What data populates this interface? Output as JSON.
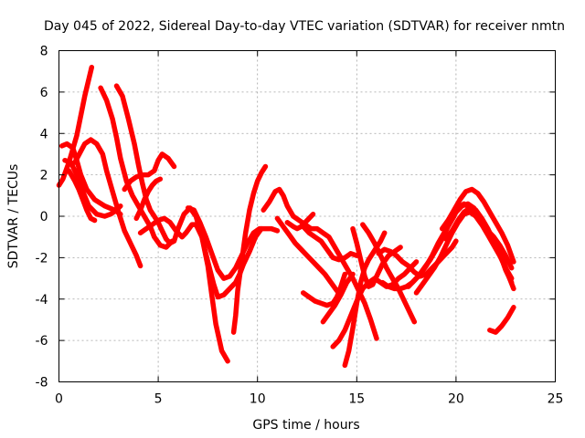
{
  "chart_data": {
    "type": "line",
    "title": "Day 045 of 2022, Sidereal Day-to-day VTEC variation (SDTVAR) for receiver nmtn",
    "xlabel": "GPS time / hours",
    "ylabel": "SDTVAR / TECUs",
    "xlim": [
      0,
      25
    ],
    "ylim": [
      -8,
      8
    ],
    "xticks": [
      0,
      5,
      10,
      15,
      20,
      25
    ],
    "yticks": [
      -8,
      -6,
      -4,
      -2,
      0,
      2,
      4,
      6,
      8
    ],
    "xtick_labels": [
      "0",
      "5",
      "10",
      "15",
      "20",
      "25"
    ],
    "ytick_labels": [
      "-8",
      "-6",
      "-4",
      "-2",
      "0",
      "2",
      "4",
      "6",
      "8"
    ],
    "grid": true,
    "marker": "plus",
    "color": "#ff0000",
    "series": [
      {
        "name": "s1",
        "x": [
          0.0,
          0.2,
          0.5,
          0.9,
          1.3,
          1.65
        ],
        "y": [
          1.5,
          1.8,
          2.6,
          3.9,
          5.8,
          7.2
        ]
      },
      {
        "name": "s2",
        "x": [
          0.15,
          0.4,
          0.7,
          0.9,
          1.1,
          1.4,
          1.8,
          2.3,
          2.8,
          3.1
        ],
        "y": [
          3.4,
          3.5,
          3.3,
          2.7,
          2.0,
          1.3,
          0.8,
          0.5,
          0.3,
          0.1
        ]
      },
      {
        "name": "s3",
        "x": [
          0.3,
          0.6,
          0.9,
          1.2,
          1.5,
          1.9,
          2.3,
          2.6,
          2.9,
          3.1
        ],
        "y": [
          2.7,
          2.6,
          2.0,
          1.2,
          0.5,
          0.1,
          0.0,
          0.1,
          0.3,
          0.5
        ]
      },
      {
        "name": "s4",
        "x": [
          0.5,
          0.8,
          1.0,
          1.2,
          1.4,
          1.6,
          1.8
        ],
        "y": [
          2.2,
          1.7,
          1.3,
          0.8,
          0.3,
          -0.1,
          -0.2
        ]
      },
      {
        "name": "s5",
        "x": [
          0.8,
          1.3,
          1.6,
          1.9,
          2.2,
          2.4,
          2.7,
          3.0,
          3.3,
          3.6,
          3.9,
          4.1
        ],
        "y": [
          2.6,
          3.5,
          3.7,
          3.5,
          3.0,
          2.2,
          1.2,
          0.2,
          -0.7,
          -1.3,
          -1.9,
          -2.4
        ]
      },
      {
        "name": "s6",
        "x": [
          2.1,
          2.4,
          2.7,
          2.9,
          3.1,
          3.4,
          3.7,
          4.0,
          4.3,
          4.6,
          4.8,
          5.1,
          5.4,
          5.7
        ],
        "y": [
          6.2,
          5.6,
          4.7,
          3.8,
          2.8,
          1.7,
          1.0,
          0.5,
          0.0,
          -0.5,
          -1.0,
          -1.4,
          -1.5,
          -1.2
        ]
      },
      {
        "name": "s7",
        "x": [
          2.9,
          3.2,
          3.5,
          3.8,
          4.0,
          4.2,
          4.4,
          4.6,
          4.8,
          5.0,
          5.2,
          5.4,
          5.6,
          5.8,
          6.0,
          6.3,
          6.6,
          6.9,
          7.2,
          7.5,
          7.7,
          7.9,
          8.2,
          8.5
        ],
        "y": [
          6.3,
          5.8,
          4.7,
          3.5,
          2.5,
          1.6,
          0.8,
          0.3,
          0.0,
          -0.3,
          -0.7,
          -1.1,
          -1.3,
          -1.2,
          -0.6,
          0.1,
          0.4,
          0.0,
          -1.0,
          -2.4,
          -3.8,
          -5.2,
          -6.5,
          -7.0
        ]
      },
      {
        "name": "s8",
        "x": [
          3.3,
          3.6,
          3.9,
          4.2,
          4.5,
          4.8,
          5.0,
          5.2,
          5.5,
          5.8
        ],
        "y": [
          1.3,
          1.7,
          1.9,
          2.0,
          2.0,
          2.2,
          2.7,
          3.0,
          2.8,
          2.4
        ]
      },
      {
        "name": "s9",
        "x": [
          3.9,
          4.1,
          4.3,
          4.5,
          4.7,
          4.9,
          5.1
        ],
        "y": [
          -0.1,
          0.3,
          0.8,
          1.2,
          1.5,
          1.7,
          1.8
        ]
      },
      {
        "name": "s10",
        "x": [
          4.1,
          4.4,
          4.7,
          5.0,
          5.3,
          5.6,
          5.9,
          6.2,
          6.4,
          6.7,
          6.9,
          7.2,
          7.5,
          7.8,
          8.0,
          8.3,
          8.6,
          8.9,
          9.1,
          9.3,
          9.6,
          9.9,
          10.2
        ],
        "y": [
          -0.8,
          -0.6,
          -0.4,
          -0.2,
          -0.1,
          -0.3,
          -0.7,
          -1.0,
          -0.8,
          -0.4,
          -0.4,
          -1.0,
          -2.2,
          -3.3,
          -3.9,
          -3.8,
          -3.5,
          -3.2,
          -2.8,
          -2.3,
          -1.7,
          -1.0,
          -0.6
        ]
      },
      {
        "name": "s11",
        "x": [
          6.5,
          6.8,
          7.1,
          7.4,
          7.7,
          8.0,
          8.3,
          8.6,
          8.9,
          9.2,
          9.5,
          9.8,
          10.1,
          10.4,
          10.7,
          11.0
        ],
        "y": [
          0.4,
          0.3,
          -0.3,
          -1.0,
          -1.8,
          -2.6,
          -3.0,
          -2.9,
          -2.5,
          -1.9,
          -1.3,
          -0.8,
          -0.6,
          -0.6,
          -0.6,
          -0.7
        ]
      },
      {
        "name": "s12",
        "x": [
          8.8,
          8.9,
          9.0,
          9.2,
          9.4,
          9.6,
          9.8,
          10.0,
          10.2,
          10.4
        ],
        "y": [
          -5.6,
          -4.8,
          -3.6,
          -2.2,
          -0.8,
          0.3,
          1.1,
          1.7,
          2.1,
          2.4
        ]
      },
      {
        "name": "s13",
        "x": [
          10.3,
          10.6,
          10.9,
          11.1,
          11.3,
          11.5,
          11.8,
          12.1,
          12.4,
          12.7,
          13.0,
          13.3,
          13.6,
          13.9,
          14.2,
          14.5,
          14.8,
          15.1,
          15.4,
          15.7,
          16.0
        ],
        "y": [
          0.3,
          0.7,
          1.2,
          1.3,
          1.0,
          0.5,
          0.0,
          -0.2,
          -0.4,
          -0.6,
          -0.6,
          -0.8,
          -1.0,
          -1.5,
          -2.0,
          -2.5,
          -3.0,
          -3.6,
          -4.2,
          -5.0,
          -5.9
        ]
      },
      {
        "name": "s14",
        "x": [
          11.0,
          11.3,
          11.6,
          11.9,
          12.2,
          12.5,
          12.8,
          13.1,
          13.4,
          13.7,
          14.0
        ],
        "y": [
          -0.1,
          -0.5,
          -0.9,
          -1.3,
          -1.6,
          -1.9,
          -2.2,
          -2.5,
          -2.8,
          -3.2,
          -3.6
        ]
      },
      {
        "name": "s15",
        "x": [
          11.5,
          11.8,
          12.0,
          12.2,
          12.4,
          12.6,
          12.8
        ],
        "y": [
          -0.3,
          -0.5,
          -0.6,
          -0.5,
          -0.3,
          -0.1,
          0.1
        ]
      },
      {
        "name": "s16",
        "x": [
          12.3,
          12.6,
          12.9,
          13.2,
          13.5,
          13.8,
          14.1,
          14.4,
          14.7,
          15.0
        ],
        "y": [
          -0.5,
          -0.8,
          -1.0,
          -1.2,
          -1.6,
          -2.0,
          -2.1,
          -2.0,
          -1.8,
          -1.9
        ]
      },
      {
        "name": "s17",
        "x": [
          12.3,
          12.6,
          12.9,
          13.2,
          13.5,
          13.8,
          14.0,
          14.2,
          14.4
        ],
        "y": [
          -3.7,
          -3.9,
          -4.1,
          -4.2,
          -4.3,
          -4.2,
          -3.9,
          -3.4,
          -2.8
        ]
      },
      {
        "name": "s18",
        "x": [
          13.3,
          13.6,
          13.9,
          14.2,
          14.5,
          14.8
        ],
        "y": [
          -5.1,
          -4.7,
          -4.3,
          -3.8,
          -3.2,
          -2.8
        ]
      },
      {
        "name": "s19",
        "x": [
          13.8,
          14.1,
          14.4,
          14.7,
          15.0,
          15.3,
          15.6,
          15.9,
          16.2,
          16.5,
          16.8,
          17.1,
          17.4,
          17.7,
          18.0
        ],
        "y": [
          -6.3,
          -6.0,
          -5.5,
          -4.8,
          -4.1,
          -3.5,
          -3.2,
          -3.0,
          -3.2,
          -3.4,
          -3.3,
          -3.0,
          -2.8,
          -2.5,
          -2.2
        ]
      },
      {
        "name": "s20",
        "x": [
          14.4,
          14.6,
          14.8,
          15.0,
          15.2,
          15.4,
          15.6,
          15.8,
          16.0,
          16.2,
          16.4
        ],
        "y": [
          -7.2,
          -6.5,
          -5.4,
          -4.2,
          -3.2,
          -2.5,
          -2.1,
          -1.8,
          -1.5,
          -1.2,
          -0.8
        ]
      },
      {
        "name": "s21",
        "x": [
          14.8,
          15.0,
          15.2,
          15.4,
          15.6,
          15.8,
          16.0,
          16.3,
          16.6,
          16.9,
          17.2
        ],
        "y": [
          -0.6,
          -1.3,
          -2.1,
          -2.9,
          -3.4,
          -3.3,
          -2.9,
          -2.3,
          -1.9,
          -1.7,
          -1.5
        ]
      },
      {
        "name": "s22",
        "x": [
          15.3,
          15.6,
          15.9,
          16.2,
          16.5,
          16.8,
          17.1,
          17.4,
          17.7,
          17.9
        ],
        "y": [
          -0.4,
          -0.8,
          -1.3,
          -1.9,
          -2.5,
          -3.0,
          -3.5,
          -4.1,
          -4.7,
          -5.1
        ]
      },
      {
        "name": "s23",
        "x": [
          16.1,
          16.4,
          16.7,
          17.0,
          17.3,
          17.6,
          17.9,
          18.2,
          18.5,
          18.8,
          19.1,
          19.4,
          19.6,
          19.8,
          20.0
        ],
        "y": [
          -1.8,
          -1.6,
          -1.7,
          -1.9,
          -2.2,
          -2.4,
          -2.7,
          -2.9,
          -2.8,
          -2.5,
          -2.2,
          -1.9,
          -1.7,
          -1.5,
          -1.2
        ]
      },
      {
        "name": "s24",
        "x": [
          16.3,
          16.6,
          16.9,
          17.2,
          17.5,
          17.8,
          18.1,
          18.4,
          18.7,
          19.0,
          19.3,
          19.6,
          19.9
        ],
        "y": [
          -3.2,
          -3.4,
          -3.5,
          -3.5,
          -3.4,
          -3.2,
          -2.9,
          -2.5,
          -2.1,
          -1.6,
          -1.1,
          -0.5,
          0.0
        ]
      },
      {
        "name": "s25",
        "x": [
          17.6,
          17.9,
          18.2,
          18.5,
          18.8,
          19.1,
          19.4,
          19.7,
          20.0,
          20.3,
          20.6,
          20.9,
          21.2,
          21.5,
          21.8,
          22.1,
          22.4,
          22.7,
          22.9
        ],
        "y": [
          -3.4,
          -3.1,
          -2.8,
          -2.4,
          -1.9,
          -1.3,
          -0.8,
          -0.3,
          0.2,
          0.5,
          0.6,
          0.4,
          0.0,
          -0.5,
          -1.0,
          -1.6,
          -2.2,
          -3.0,
          -3.5
        ]
      },
      {
        "name": "s26",
        "x": [
          18.0,
          18.3,
          18.6,
          18.9,
          19.2,
          19.5,
          19.8,
          20.1,
          20.4,
          20.7,
          21.0,
          21.3,
          21.6,
          21.9,
          22.2,
          22.5,
          22.8
        ],
        "y": [
          -3.7,
          -3.3,
          -2.9,
          -2.5,
          -2.0,
          -1.4,
          -0.8,
          -0.3,
          0.1,
          0.2,
          0.0,
          -0.4,
          -0.9,
          -1.4,
          -1.9,
          -2.5,
          -3.0
        ]
      },
      {
        "name": "s27",
        "x": [
          19.3,
          19.6,
          19.9,
          20.2,
          20.5,
          20.8,
          21.1,
          21.4,
          21.7,
          22.0,
          22.3,
          22.6,
          22.9
        ],
        "y": [
          -0.6,
          -0.2,
          0.3,
          0.8,
          1.2,
          1.3,
          1.1,
          0.7,
          0.2,
          -0.3,
          -0.8,
          -1.4,
          -2.2
        ]
      },
      {
        "name": "s28",
        "x": [
          19.5,
          19.8,
          20.1,
          20.4,
          20.7,
          21.0,
          21.3,
          21.6,
          21.9,
          22.2,
          22.5,
          22.8
        ],
        "y": [
          -1.1,
          -0.7,
          -0.2,
          0.2,
          0.4,
          0.3,
          -0.1,
          -0.6,
          -1.2,
          -1.8,
          -2.6,
          -3.2
        ]
      },
      {
        "name": "s29",
        "x": [
          19.8,
          20.1,
          20.4,
          20.7,
          21.0,
          21.3,
          21.6,
          21.9,
          22.2,
          22.5,
          22.8
        ],
        "y": [
          0.1,
          0.4,
          0.6,
          0.4,
          0.0,
          -0.4,
          -0.7,
          -1.0,
          -1.4,
          -1.9,
          -2.5
        ]
      },
      {
        "name": "s30",
        "x": [
          21.7,
          22.0,
          22.3,
          22.6,
          22.9
        ],
        "y": [
          -5.5,
          -5.6,
          -5.3,
          -4.9,
          -4.4
        ]
      }
    ]
  }
}
